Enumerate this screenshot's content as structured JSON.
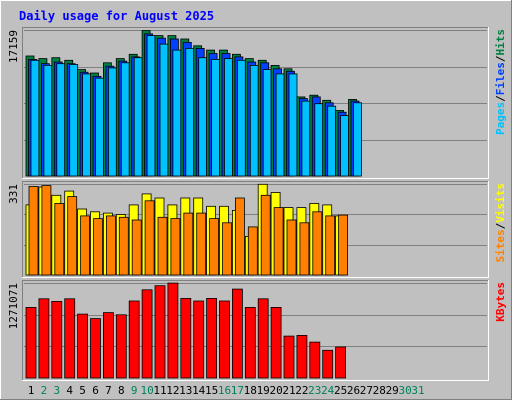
{
  "title": "Daily usage for August 2025",
  "colors": {
    "background": "#c0c0c0",
    "title": "#0000ff",
    "hits": "#008040",
    "files": "#0040ff",
    "pages": "#00c0ff",
    "visits": "#ffff00",
    "sites": "#ff8000",
    "kbytes": "#ff0000",
    "weekend_day": "#00805c",
    "weekday": "#000000"
  },
  "chart_data": [
    {
      "type": "bar",
      "panel": "hits-files-pages",
      "max_label": "17159",
      "legend": [
        "Pages",
        "/",
        "Files",
        "/",
        "Hits"
      ],
      "categories": [
        "1",
        "2",
        "3",
        "4",
        "5",
        "6",
        "7",
        "8",
        "9",
        "10",
        "11",
        "12",
        "13",
        "14",
        "15",
        "16",
        "17",
        "18",
        "19",
        "20",
        "21",
        "22",
        "23",
        "24",
        "25",
        "26",
        "27",
        "28",
        "29",
        "30",
        "31"
      ],
      "ylim": [
        0,
        17159
      ],
      "series": [
        {
          "name": "Hits",
          "values": [
            14100,
            13800,
            13900,
            13600,
            12500,
            12100,
            13300,
            13800,
            14300,
            17100,
            16500,
            16500,
            16100,
            15300,
            14800,
            14800,
            14300,
            13800,
            13600,
            13000,
            12600,
            9300,
            9500,
            8900,
            7700,
            9000,
            0,
            0,
            0,
            0,
            0
          ]
        },
        {
          "name": "Files",
          "values": [
            13700,
            13200,
            13400,
            13200,
            12200,
            11700,
            12900,
            13500,
            14000,
            16700,
            16200,
            16100,
            15700,
            15000,
            14400,
            14400,
            14000,
            13400,
            13300,
            12600,
            12300,
            9100,
            9300,
            8600,
            7500,
            8800,
            0,
            0,
            0,
            0,
            0
          ]
        },
        {
          "name": "Pages",
          "values": [
            13600,
            13000,
            13200,
            13100,
            12000,
            11500,
            12700,
            13300,
            13900,
            16500,
            15500,
            14800,
            15000,
            13900,
            13700,
            13800,
            13600,
            13000,
            12500,
            12000,
            12000,
            8800,
            8500,
            8200,
            7100,
            8600,
            0,
            0,
            0,
            0,
            0
          ]
        }
      ]
    },
    {
      "type": "bar",
      "panel": "visits-sites",
      "max_label": "331",
      "legend": [
        "Sites",
        "/",
        "Visits"
      ],
      "categories": [
        "1",
        "2",
        "3",
        "4",
        "5",
        "6",
        "7",
        "8",
        "9",
        "10",
        "11",
        "12",
        "13",
        "14",
        "15",
        "16",
        "17",
        "18",
        "19",
        "20",
        "21",
        "22",
        "23",
        "24",
        "25",
        "26",
        "27",
        "28",
        "29",
        "30",
        "31"
      ],
      "ylim": [
        0,
        331
      ],
      "series": [
        {
          "name": "Visits",
          "values": [
            255,
            320,
            290,
            305,
            240,
            230,
            225,
            220,
            255,
            295,
            280,
            255,
            280,
            280,
            250,
            250,
            235,
            140,
            330,
            300,
            245,
            245,
            260,
            255,
            215,
            0,
            0,
            0,
            0,
            0,
            0
          ]
        },
        {
          "name": "Sites",
          "values": [
            322,
            325,
            260,
            285,
            215,
            205,
            215,
            210,
            200,
            270,
            210,
            205,
            225,
            225,
            205,
            190,
            280,
            175,
            290,
            245,
            200,
            190,
            230,
            215,
            218,
            0,
            0,
            0,
            0,
            0,
            0
          ]
        }
      ]
    },
    {
      "type": "bar",
      "panel": "kbytes",
      "max_label": "1271071",
      "legend": [
        "KBytes"
      ],
      "categories": [
        "1",
        "2",
        "3",
        "4",
        "5",
        "6",
        "7",
        "8",
        "9",
        "10",
        "11",
        "12",
        "13",
        "14",
        "15",
        "16",
        "17",
        "18",
        "19",
        "20",
        "21",
        "22",
        "23",
        "24",
        "25",
        "26",
        "27",
        "28",
        "29",
        "30",
        "31"
      ],
      "ylim": [
        0,
        1271071
      ],
      "series": [
        {
          "name": "KBytes",
          "values": [
            945000,
            1060000,
            1025000,
            1060000,
            855000,
            795000,
            875000,
            845000,
            1030000,
            1180000,
            1235000,
            1270000,
            1065000,
            1030000,
            1065000,
            1030000,
            1190000,
            945000,
            1060000,
            945000,
            560000,
            570000,
            480000,
            370000,
            415000,
            0,
            0,
            0,
            0,
            0,
            0
          ]
        }
      ]
    }
  ],
  "weekend_days": [
    "2",
    "3",
    "9",
    "10",
    "16",
    "17",
    "23",
    "24",
    "30",
    "31"
  ]
}
